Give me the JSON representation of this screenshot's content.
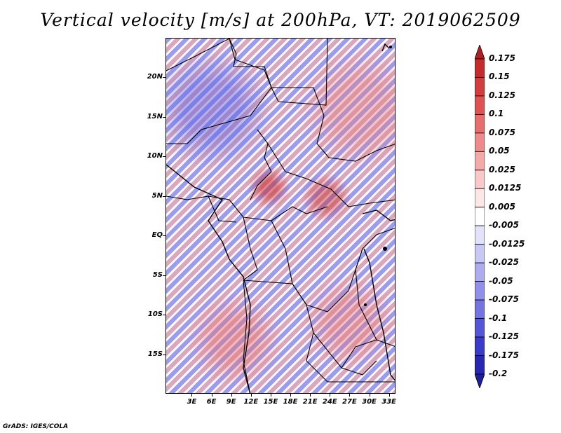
{
  "title": "Vertical velocity [m/s] at 200hPa, VT: 2019062509",
  "credit": "GrADS: IGES/COLA",
  "map": {
    "projection": "lat-lon",
    "lon_range": [
      -1,
      34
    ],
    "lat_range": [
      -20,
      25
    ],
    "field": "vertical velocity",
    "units": "m/s",
    "level": "200hPa",
    "valid_time": "2019062509",
    "lat_ticks": [
      {
        "label": "20N",
        "value": 20
      },
      {
        "label": "15N",
        "value": 15
      },
      {
        "label": "10N",
        "value": 10
      },
      {
        "label": "5N",
        "value": 5
      },
      {
        "label": "EQ",
        "value": 0
      },
      {
        "label": "5S",
        "value": -5
      },
      {
        "label": "10S",
        "value": -10
      },
      {
        "label": "15S",
        "value": -15
      }
    ],
    "lon_ticks": [
      {
        "label": "3E",
        "value": 3
      },
      {
        "label": "6E",
        "value": 6
      },
      {
        "label": "9E",
        "value": 9
      },
      {
        "label": "12E",
        "value": 12
      },
      {
        "label": "15E",
        "value": 15
      },
      {
        "label": "18E",
        "value": 18
      },
      {
        "label": "21E",
        "value": 21
      },
      {
        "label": "24E",
        "value": 24
      },
      {
        "label": "27E",
        "value": 27
      },
      {
        "label": "30E",
        "value": 30
      },
      {
        "label": "33E",
        "value": 33
      }
    ]
  },
  "colorbar": {
    "labels": [
      "0.175",
      "0.15",
      "0.125",
      "0.1",
      "0.075",
      "0.05",
      "0.025",
      "0.0125",
      "0.005",
      "-0.005",
      "-0.0125",
      "-0.025",
      "-0.05",
      "-0.075",
      "-0.1",
      "-0.125",
      "-0.175",
      "-0.2"
    ],
    "colors": [
      "#b01e23",
      "#c52b2b",
      "#d43d3d",
      "#e05252",
      "#e86d6d",
      "#ef8a8a",
      "#f5a9a9",
      "#f9c8c8",
      "#fde6e6",
      "#ffffff",
      "#e2e2fb",
      "#c8c8f6",
      "#acacf0",
      "#9090ea",
      "#7373e2",
      "#5555d8",
      "#3a3acb",
      "#2727b4",
      "#1e1e9a"
    ]
  }
}
